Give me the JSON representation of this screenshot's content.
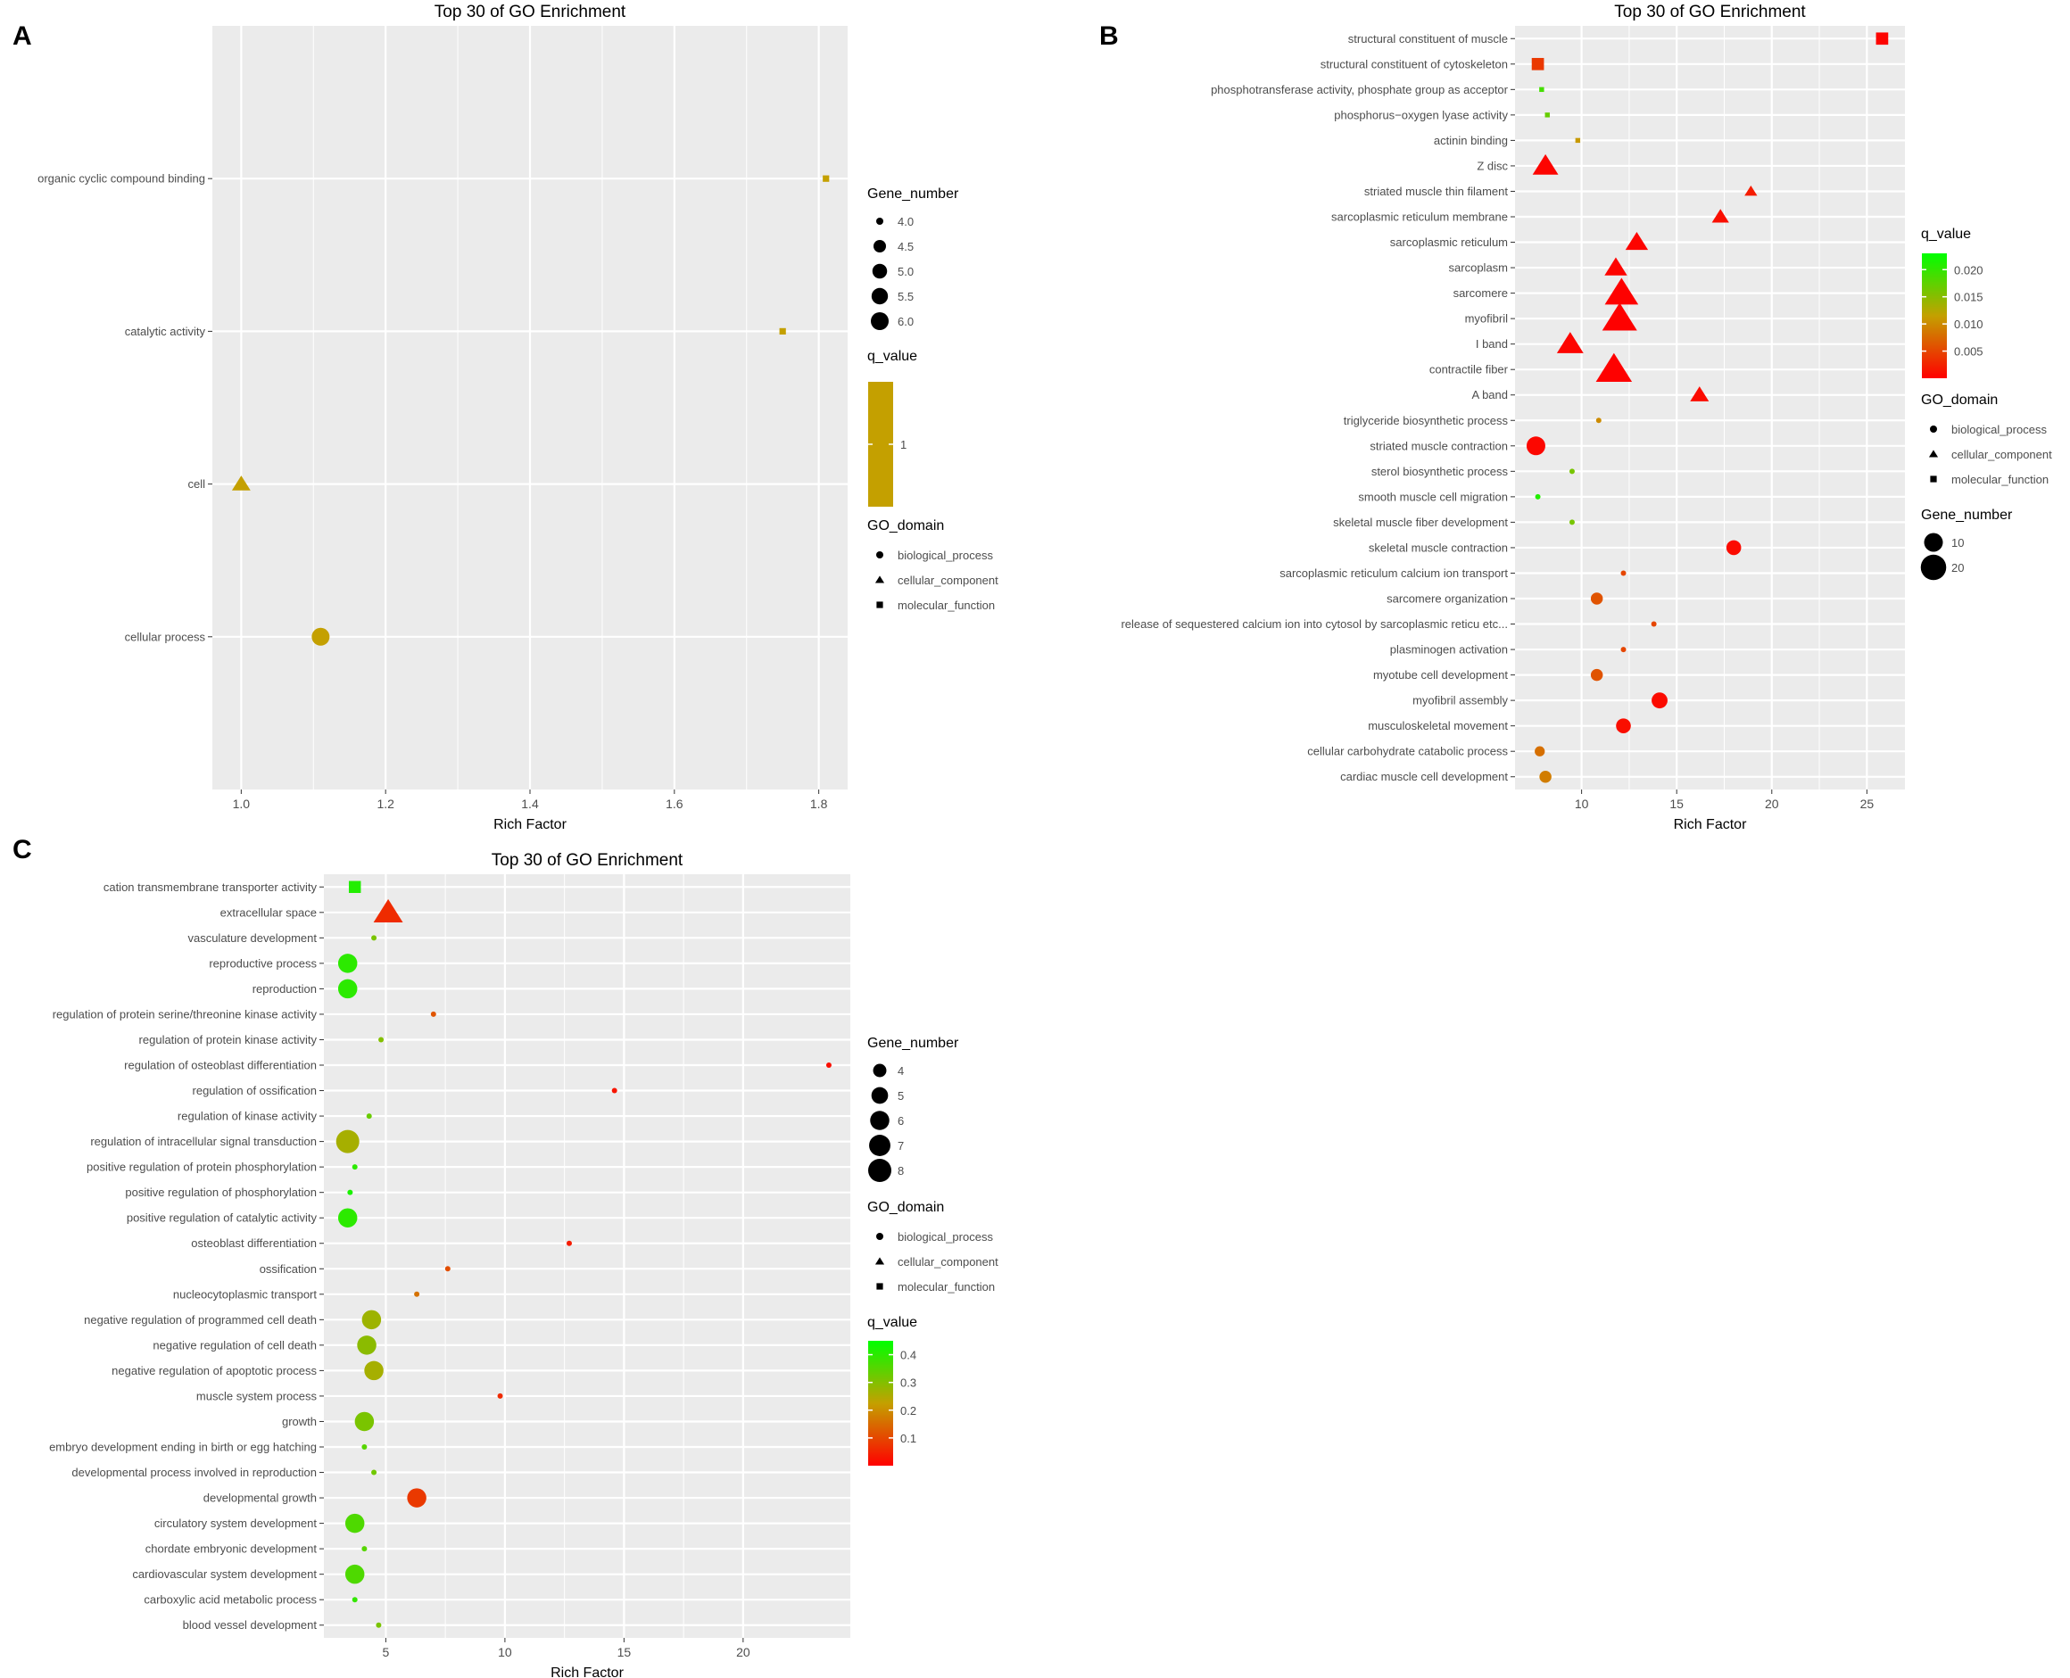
{
  "figure": {
    "panels": [
      "A",
      "B",
      "C"
    ]
  },
  "colors": {
    "panel_background": "#ebebeb",
    "grid": "#ffffff",
    "q_low": "#ff0000",
    "q_mid": "#c4a000",
    "q_high": "#00ff00",
    "text": "#4d4d4d",
    "title": "#000000"
  },
  "chart_data": [
    {
      "panel_label": "A",
      "type": "scatter",
      "title": "Top 30 of GO Enrichment",
      "xlabel": "Rich Factor",
      "ylabel": "",
      "xlim": [
        0.96,
        1.84
      ],
      "x_ticks": [
        1.0,
        1.2,
        1.4,
        1.6,
        1.8
      ],
      "x_tick_labels": [
        "1.0",
        "1.2",
        "1.4",
        "1.6",
        "1.8"
      ],
      "categories": [
        "organic cyclic compound binding",
        "catalytic activity",
        "cell",
        "cellular process"
      ],
      "points": [
        {
          "term": "organic cyclic compound binding",
          "x": 1.81,
          "gene_number": 4,
          "q_value": 1,
          "domain": "molecular_function"
        },
        {
          "term": "catalytic activity",
          "x": 1.75,
          "gene_number": 4,
          "q_value": 1,
          "domain": "molecular_function"
        },
        {
          "term": "cell",
          "x": 1.0,
          "gene_number": 5,
          "q_value": 1,
          "domain": "cellular_component"
        },
        {
          "term": "cellular process",
          "x": 1.11,
          "gene_number": 6,
          "q_value": 1,
          "domain": "biological_process"
        }
      ],
      "size_range": [
        4,
        6
      ],
      "q_range": [
        1,
        1
      ],
      "legends": [
        {
          "type": "size",
          "title": "Gene_number",
          "labels": [
            "4.0",
            "4.5",
            "5.0",
            "5.5",
            "6.0"
          ],
          "values": [
            4,
            4.5,
            5,
            5.5,
            6
          ]
        },
        {
          "type": "color",
          "title": "q_value",
          "labels": [
            "1"
          ],
          "values": [
            1
          ],
          "constant": true
        },
        {
          "type": "shape",
          "title": "GO_domain",
          "labels": [
            "biological_process",
            "cellular_component",
            "molecular_function"
          ]
        }
      ]
    },
    {
      "panel_label": "B",
      "type": "scatter",
      "title": "Top 30 of GO Enrichment",
      "xlabel": "Rich Factor",
      "ylabel": "",
      "xlim": [
        6.5,
        27.0
      ],
      "x_ticks": [
        10,
        15,
        20,
        25
      ],
      "x_tick_labels": [
        "10",
        "15",
        "20",
        "25"
      ],
      "categories": [
        "structural constituent of muscle",
        "structural constituent of cytoskeleton",
        "phosphotransferase activity, phosphate group as acceptor",
        "phosphorus−oxygen lyase activity",
        "actinin binding",
        "Z disc",
        "striated muscle thin filament",
        "sarcoplasmic reticulum membrane",
        "sarcoplasmic reticulum",
        "sarcoplasm",
        "sarcomere",
        "myofibril",
        "I band",
        "contractile fiber",
        "A band",
        "triglyceride biosynthetic process",
        "striated muscle contraction",
        "sterol biosynthetic process",
        "smooth muscle cell migration",
        "skeletal muscle fiber development",
        "skeletal muscle contraction",
        "sarcoplasmic reticulum calcium ion transport",
        "sarcomere organization",
        "release of sequestered calcium ion into cytosol by sarcoplasmic reticu etc...",
        "plasminogen activation",
        "myotube cell development",
        "myofibril assembly",
        "musculoskeletal movement",
        "cellular carbohydrate catabolic process",
        "cardiac muscle cell development"
      ],
      "points": [
        {
          "term": "structural constituent of muscle",
          "x": 25.8,
          "gene_number": 5,
          "q_value": 0.0003,
          "domain": "molecular_function"
        },
        {
          "term": "structural constituent of cytoskeleton",
          "x": 7.7,
          "gene_number": 5,
          "q_value": 0.004,
          "domain": "molecular_function"
        },
        {
          "term": "phosphotransferase activity, phosphate group as acceptor",
          "x": 7.9,
          "gene_number": 2,
          "q_value": 0.019,
          "domain": "molecular_function"
        },
        {
          "term": "phosphorus−oxygen lyase activity",
          "x": 8.2,
          "gene_number": 2,
          "q_value": 0.017,
          "domain": "molecular_function"
        },
        {
          "term": "actinin binding",
          "x": 9.8,
          "gene_number": 2,
          "q_value": 0.011,
          "domain": "molecular_function"
        },
        {
          "term": "Z disc",
          "x": 8.1,
          "gene_number": 12,
          "q_value": 0.0003,
          "domain": "cellular_component"
        },
        {
          "term": "striated muscle thin filament",
          "x": 18.9,
          "gene_number": 3,
          "q_value": 0.002,
          "domain": "cellular_component"
        },
        {
          "term": "sarcoplasmic reticulum membrane",
          "x": 17.3,
          "gene_number": 5,
          "q_value": 0.001,
          "domain": "cellular_component"
        },
        {
          "term": "sarcoplasmic reticulum",
          "x": 12.9,
          "gene_number": 9,
          "q_value": 0.0003,
          "domain": "cellular_component"
        },
        {
          "term": "sarcoplasm",
          "x": 11.8,
          "gene_number": 9,
          "q_value": 0.0003,
          "domain": "cellular_component"
        },
        {
          "term": "sarcomere",
          "x": 12.1,
          "gene_number": 22,
          "q_value": 0.0001,
          "domain": "cellular_component"
        },
        {
          "term": "myofibril",
          "x": 12.0,
          "gene_number": 24,
          "q_value": 0.0001,
          "domain": "cellular_component"
        },
        {
          "term": "I band",
          "x": 9.4,
          "gene_number": 13,
          "q_value": 0.0003,
          "domain": "cellular_component"
        },
        {
          "term": "contractile fiber",
          "x": 11.7,
          "gene_number": 26,
          "q_value": 0.0001,
          "domain": "cellular_component"
        },
        {
          "term": "A band",
          "x": 16.2,
          "gene_number": 6,
          "q_value": 0.0008,
          "domain": "cellular_component"
        },
        {
          "term": "triglyceride biosynthetic process",
          "x": 10.9,
          "gene_number": 2,
          "q_value": 0.01,
          "domain": "biological_process"
        },
        {
          "term": "striated muscle contraction",
          "x": 7.6,
          "gene_number": 10,
          "q_value": 0.0005,
          "domain": "biological_process"
        },
        {
          "term": "sterol biosynthetic process",
          "x": 9.5,
          "gene_number": 2,
          "q_value": 0.016,
          "domain": "biological_process"
        },
        {
          "term": "smooth muscle cell migration",
          "x": 7.7,
          "gene_number": 2,
          "q_value": 0.021,
          "domain": "biological_process"
        },
        {
          "term": "skeletal muscle fiber development",
          "x": 9.5,
          "gene_number": 2,
          "q_value": 0.016,
          "domain": "biological_process"
        },
        {
          "term": "skeletal muscle contraction",
          "x": 18.0,
          "gene_number": 6,
          "q_value": 0.0008,
          "domain": "biological_process"
        },
        {
          "term": "sarcoplasmic reticulum calcium ion transport",
          "x": 12.2,
          "gene_number": 2,
          "q_value": 0.005,
          "domain": "biological_process"
        },
        {
          "term": "sarcomere organization",
          "x": 10.8,
          "gene_number": 4,
          "q_value": 0.006,
          "domain": "biological_process"
        },
        {
          "term": "release of sequestered calcium ion into cytosol by sarcoplasmic reticu etc...",
          "x": 13.8,
          "gene_number": 2,
          "q_value": 0.005,
          "domain": "biological_process"
        },
        {
          "term": "plasminogen activation",
          "x": 12.2,
          "gene_number": 2,
          "q_value": 0.005,
          "domain": "biological_process"
        },
        {
          "term": "myotube cell development",
          "x": 10.8,
          "gene_number": 4,
          "q_value": 0.006,
          "domain": "biological_process"
        },
        {
          "term": "myofibril assembly",
          "x": 14.1,
          "gene_number": 7,
          "q_value": 0.0008,
          "domain": "biological_process"
        },
        {
          "term": "musculoskeletal movement",
          "x": 12.2,
          "gene_number": 6,
          "q_value": 0.001,
          "domain": "biological_process"
        },
        {
          "term": "cellular carbohydrate catabolic process",
          "x": 7.8,
          "gene_number": 3,
          "q_value": 0.008,
          "domain": "biological_process"
        },
        {
          "term": "cardiac muscle cell development",
          "x": 8.1,
          "gene_number": 4,
          "q_value": 0.009,
          "domain": "biological_process"
        }
      ],
      "size_range": [
        2,
        26
      ],
      "q_range": [
        0.0,
        0.023
      ],
      "legends": [
        {
          "type": "color",
          "title": "q_value",
          "labels": [
            "0.020",
            "0.015",
            "0.010",
            "0.005"
          ],
          "values": [
            0.02,
            0.015,
            0.01,
            0.005
          ]
        },
        {
          "type": "shape",
          "title": "GO_domain",
          "labels": [
            "biological_process",
            "cellular_component",
            "molecular_function"
          ]
        },
        {
          "type": "size",
          "title": "Gene_number",
          "labels": [
            "10",
            "20"
          ],
          "values": [
            10,
            20
          ]
        }
      ]
    },
    {
      "panel_label": "C",
      "type": "scatter",
      "title": "Top 30 of GO Enrichment",
      "xlabel": "Rich Factor",
      "ylabel": "",
      "xlim": [
        2.4,
        24.5
      ],
      "x_ticks": [
        5,
        10,
        15,
        20
      ],
      "x_tick_labels": [
        "5",
        "10",
        "15",
        "20"
      ],
      "categories": [
        "cation transmembrane transporter activity",
        "extracellular space",
        "vasculature development",
        "reproductive process",
        "reproduction",
        "regulation of protein serine/threonine kinase activity",
        "regulation of protein kinase activity",
        "regulation of osteoblast differentiation",
        "regulation of ossification",
        "regulation of kinase activity",
        "regulation of intracellular signal transduction",
        "positive regulation of protein phosphorylation",
        "positive regulation of phosphorylation",
        "positive regulation of catalytic activity",
        "osteoblast differentiation",
        "ossification",
        "nucleocytoplasmic transport",
        "negative regulation of programmed cell death",
        "negative regulation of cell death",
        "negative regulation of apoptotic process",
        "muscle system process",
        "growth",
        "embryo development ending in birth or egg hatching",
        "developmental process involved in reproduction",
        "developmental growth",
        "circulatory system development",
        "chordate embryonic development",
        "cardiovascular system development",
        "carboxylic acid metabolic process",
        "blood vessel development"
      ],
      "points": [
        {
          "term": "cation transmembrane transporter activity",
          "x": 3.7,
          "gene_number": 4,
          "q_value": 0.41,
          "domain": "molecular_function"
        },
        {
          "term": "extracellular space",
          "x": 5.1,
          "gene_number": 8,
          "q_value": 0.06,
          "domain": "cellular_component"
        },
        {
          "term": "vasculature development",
          "x": 4.5,
          "gene_number": 3,
          "q_value": 0.31,
          "domain": "biological_process"
        },
        {
          "term": "reproductive process",
          "x": 3.4,
          "gene_number": 6,
          "q_value": 0.4,
          "domain": "biological_process"
        },
        {
          "term": "reproduction",
          "x": 3.4,
          "gene_number": 6,
          "q_value": 0.4,
          "domain": "biological_process"
        },
        {
          "term": "regulation of protein serine/threonine kinase activity",
          "x": 7.0,
          "gene_number": 3,
          "q_value": 0.12,
          "domain": "biological_process"
        },
        {
          "term": "regulation of protein kinase activity",
          "x": 4.8,
          "gene_number": 3,
          "q_value": 0.3,
          "domain": "biological_process"
        },
        {
          "term": "regulation of osteoblast differentiation",
          "x": 23.6,
          "gene_number": 3,
          "q_value": 0.02,
          "domain": "biological_process"
        },
        {
          "term": "regulation of ossification",
          "x": 14.6,
          "gene_number": 3,
          "q_value": 0.03,
          "domain": "biological_process"
        },
        {
          "term": "regulation of kinase activity",
          "x": 4.3,
          "gene_number": 3,
          "q_value": 0.33,
          "domain": "biological_process"
        },
        {
          "term": "regulation of intracellular signal transduction",
          "x": 3.4,
          "gene_number": 8,
          "q_value": 0.26,
          "domain": "biological_process"
        },
        {
          "term": "positive regulation of protein phosphorylation",
          "x": 3.7,
          "gene_number": 3,
          "q_value": 0.4,
          "domain": "biological_process"
        },
        {
          "term": "positive regulation of phosphorylation",
          "x": 3.5,
          "gene_number": 3,
          "q_value": 0.42,
          "domain": "biological_process"
        },
        {
          "term": "positive regulation of catalytic activity",
          "x": 3.4,
          "gene_number": 6,
          "q_value": 0.4,
          "domain": "biological_process"
        },
        {
          "term": "osteoblast differentiation",
          "x": 12.7,
          "gene_number": 3,
          "q_value": 0.04,
          "domain": "biological_process"
        },
        {
          "term": "ossification",
          "x": 7.6,
          "gene_number": 3,
          "q_value": 0.11,
          "domain": "biological_process"
        },
        {
          "term": "nucleocytoplasmic transport",
          "x": 6.3,
          "gene_number": 3,
          "q_value": 0.16,
          "domain": "biological_process"
        },
        {
          "term": "negative regulation of programmed cell death",
          "x": 4.4,
          "gene_number": 6,
          "q_value": 0.27,
          "domain": "biological_process"
        },
        {
          "term": "negative regulation of cell death",
          "x": 4.2,
          "gene_number": 6,
          "q_value": 0.29,
          "domain": "biological_process"
        },
        {
          "term": "negative regulation of apoptotic process",
          "x": 4.5,
          "gene_number": 6,
          "q_value": 0.26,
          "domain": "biological_process"
        },
        {
          "term": "muscle system process",
          "x": 9.8,
          "gene_number": 3,
          "q_value": 0.06,
          "domain": "biological_process"
        },
        {
          "term": "growth",
          "x": 4.1,
          "gene_number": 6,
          "q_value": 0.31,
          "domain": "biological_process"
        },
        {
          "term": "embryo development ending in birth or egg hatching",
          "x": 4.1,
          "gene_number": 3,
          "q_value": 0.35,
          "domain": "biological_process"
        },
        {
          "term": "developmental process involved in reproduction",
          "x": 4.5,
          "gene_number": 3,
          "q_value": 0.32,
          "domain": "biological_process"
        },
        {
          "term": "developmental growth",
          "x": 6.3,
          "gene_number": 6,
          "q_value": 0.08,
          "domain": "biological_process"
        },
        {
          "term": "circulatory system development",
          "x": 3.7,
          "gene_number": 6,
          "q_value": 0.36,
          "domain": "biological_process"
        },
        {
          "term": "chordate embryonic development",
          "x": 4.1,
          "gene_number": 3,
          "q_value": 0.35,
          "domain": "biological_process"
        },
        {
          "term": "cardiovascular system development",
          "x": 3.7,
          "gene_number": 6,
          "q_value": 0.36,
          "domain": "biological_process"
        },
        {
          "term": "carboxylic acid metabolic process",
          "x": 3.7,
          "gene_number": 3,
          "q_value": 0.39,
          "domain": "biological_process"
        },
        {
          "term": "blood vessel development",
          "x": 4.7,
          "gene_number": 3,
          "q_value": 0.31,
          "domain": "biological_process"
        }
      ],
      "size_range": [
        3,
        8
      ],
      "q_range": [
        0.0,
        0.45
      ],
      "legends": [
        {
          "type": "size",
          "title": "Gene_number",
          "labels": [
            "4",
            "5",
            "6",
            "7",
            "8"
          ],
          "values": [
            4,
            5,
            6,
            7,
            8
          ]
        },
        {
          "type": "shape",
          "title": "GO_domain",
          "labels": [
            "biological_process",
            "cellular_component",
            "molecular_function"
          ]
        },
        {
          "type": "color",
          "title": "q_value",
          "labels": [
            "0.4",
            "0.3",
            "0.2",
            "0.1"
          ],
          "values": [
            0.4,
            0.3,
            0.2,
            0.1
          ]
        }
      ]
    }
  ]
}
